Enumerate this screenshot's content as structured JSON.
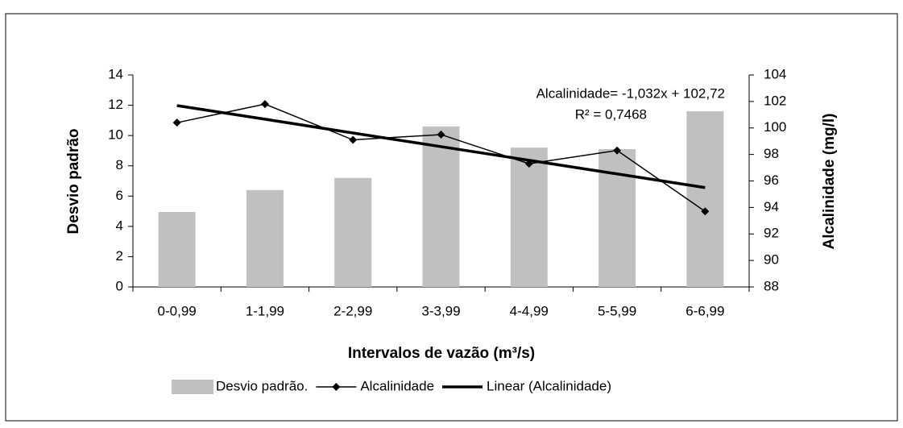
{
  "chart_data": {
    "type": "bar",
    "categories": [
      "0-0,99",
      "1-1,99",
      "2-2,99",
      "3-3,99",
      "4-4,99",
      "5-5,99",
      "6-6,99"
    ],
    "series": [
      {
        "name": "Desvio padrão.",
        "type": "bar",
        "color": "#c0c0c0",
        "axis": "y",
        "values": [
          4.95,
          6.4,
          7.2,
          10.6,
          9.2,
          9.1,
          11.6
        ]
      },
      {
        "name": "Alcalinidade",
        "type": "line",
        "marker": "diamond",
        "color": "#000000",
        "axis": "y2",
        "values": [
          100.4,
          101.8,
          99.1,
          99.5,
          97.3,
          98.3,
          93.7
        ]
      },
      {
        "name": "Linear (Alcalinidade)",
        "type": "trend",
        "color": "#000000",
        "axis": "y2",
        "values": [
          101.69,
          100.66,
          99.62,
          98.59,
          97.56,
          96.53,
          95.5
        ]
      }
    ],
    "xlabel": "Intervalos de vazão (m³/s)",
    "ylabel": "Desvio padrão",
    "y2label": "Alcalinidade (mg/l)",
    "ylim": [
      0,
      14
    ],
    "yticks": [
      0,
      2,
      4,
      6,
      8,
      10,
      12,
      14
    ],
    "y2lim": [
      88,
      104
    ],
    "y2ticks": [
      88,
      90,
      92,
      94,
      96,
      98,
      100,
      102,
      104
    ],
    "annotations": [
      "Alcalinidade= -1,032x + 102,72",
      "R² = 0,7468"
    ],
    "legend": "bottom"
  }
}
